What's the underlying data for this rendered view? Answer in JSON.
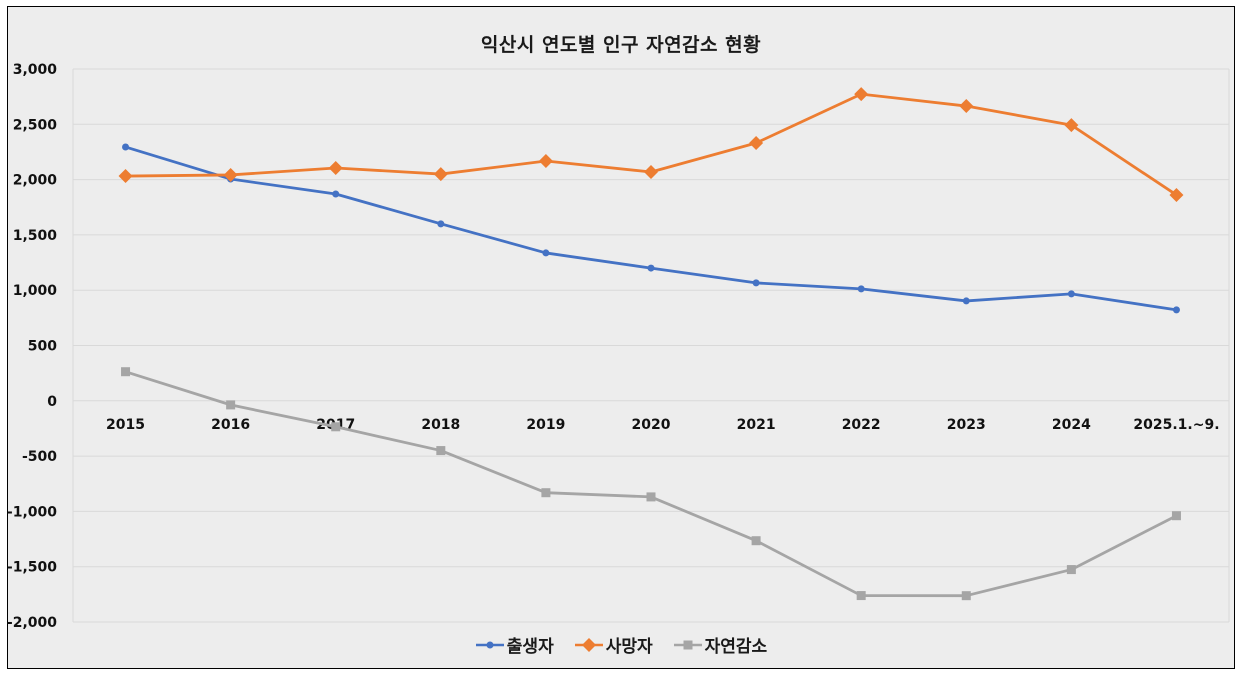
{
  "chart_data": {
    "type": "line",
    "title": "익산시 연도별 인구 자연감소 현황",
    "xlabel": "",
    "ylabel": "",
    "categories": [
      "2015",
      "2016",
      "2017",
      "2018",
      "2019",
      "2020",
      "2021",
      "2022",
      "2023",
      "2024",
      "2025.1.~9."
    ],
    "ylim": [
      -2000,
      3000
    ],
    "yticks": [
      3000,
      2500,
      2000,
      1500,
      1000,
      500,
      0,
      -500,
      -1000,
      -1500,
      -2000
    ],
    "ytick_labels": [
      "3,000",
      "2,500",
      "2,000",
      "1,500",
      "1,000",
      "500",
      "0",
      "-500",
      "-1,000",
      "-1,500",
      "-2,000"
    ],
    "grid": true,
    "legend_position": "bottom",
    "series": [
      {
        "name": "출생자",
        "color": "#4472c4",
        "marker": "circle",
        "values": [
          2295,
          2005,
          1870,
          1600,
          1337,
          1200,
          1066,
          1012,
          903,
          967,
          822
        ]
      },
      {
        "name": "사망자",
        "color": "#ed7d31",
        "marker": "diamond",
        "values": [
          2032,
          2042,
          2105,
          2050,
          2168,
          2069,
          2331,
          2773,
          2665,
          2493,
          1861
        ]
      },
      {
        "name": "자연감소",
        "color": "#a5a5a5",
        "marker": "square",
        "values": [
          263,
          -37,
          -235,
          -450,
          -831,
          -869,
          -1265,
          -1761,
          -1762,
          -1526,
          -1039
        ]
      }
    ]
  }
}
